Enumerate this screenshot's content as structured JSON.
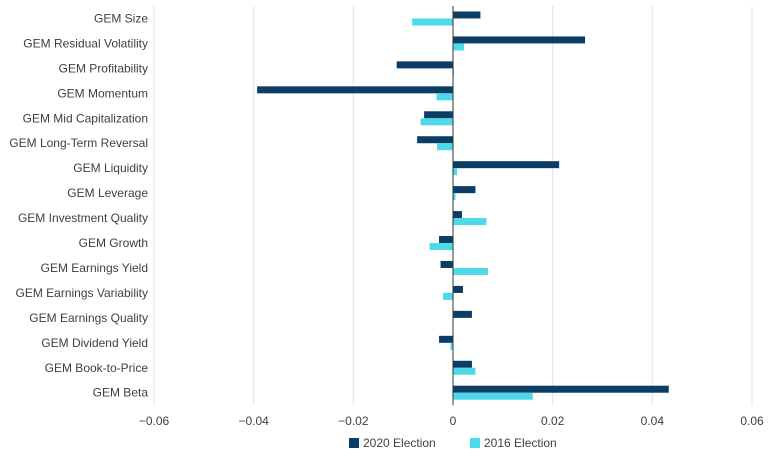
{
  "chart_data": {
    "type": "bar",
    "orientation": "horizontal",
    "categories": [
      "GEM Size",
      "GEM Residual Volatility",
      "GEM Profitability",
      "GEM Momentum",
      "GEM Mid Capitalization",
      "GEM Long-Term Reversal",
      "GEM Liquidity",
      "GEM Leverage",
      "GEM Investment Quality",
      "GEM Growth",
      "GEM Earnings Yield",
      "GEM Earnings Variability",
      "GEM Earnings Quality",
      "GEM Dividend Yield",
      "GEM Book-to-Price",
      "GEM Beta"
    ],
    "series": [
      {
        "name": "2020 Election",
        "color": "#0b3d66",
        "values": [
          0.0055,
          0.0265,
          -0.0113,
          -0.0393,
          -0.0058,
          -0.0072,
          0.0213,
          0.0045,
          0.0018,
          -0.0028,
          -0.0025,
          0.002,
          0.0038,
          -0.0028,
          0.0038,
          0.0433
        ]
      },
      {
        "name": "2016 Election",
        "color": "#4dd9e8",
        "values": [
          -0.0082,
          0.0022,
          0.0002,
          -0.0033,
          -0.0065,
          -0.0032,
          0.0008,
          0.0005,
          0.0067,
          -0.0047,
          0.007,
          -0.002,
          0.0,
          -0.0005,
          0.0045,
          0.016
        ]
      }
    ],
    "xlim": [
      -0.06,
      0.06
    ],
    "xticks": [
      -0.06,
      -0.04,
      -0.02,
      0,
      0.02,
      0.04,
      0.06
    ],
    "xtick_labels": [
      "−0.06",
      "−0.04",
      "−0.02",
      "0",
      "0.02",
      "0.04",
      "0.06"
    ],
    "grid": "vertical",
    "legend_position": "bottom-center",
    "title": "",
    "xlabel": "",
    "ylabel": ""
  }
}
